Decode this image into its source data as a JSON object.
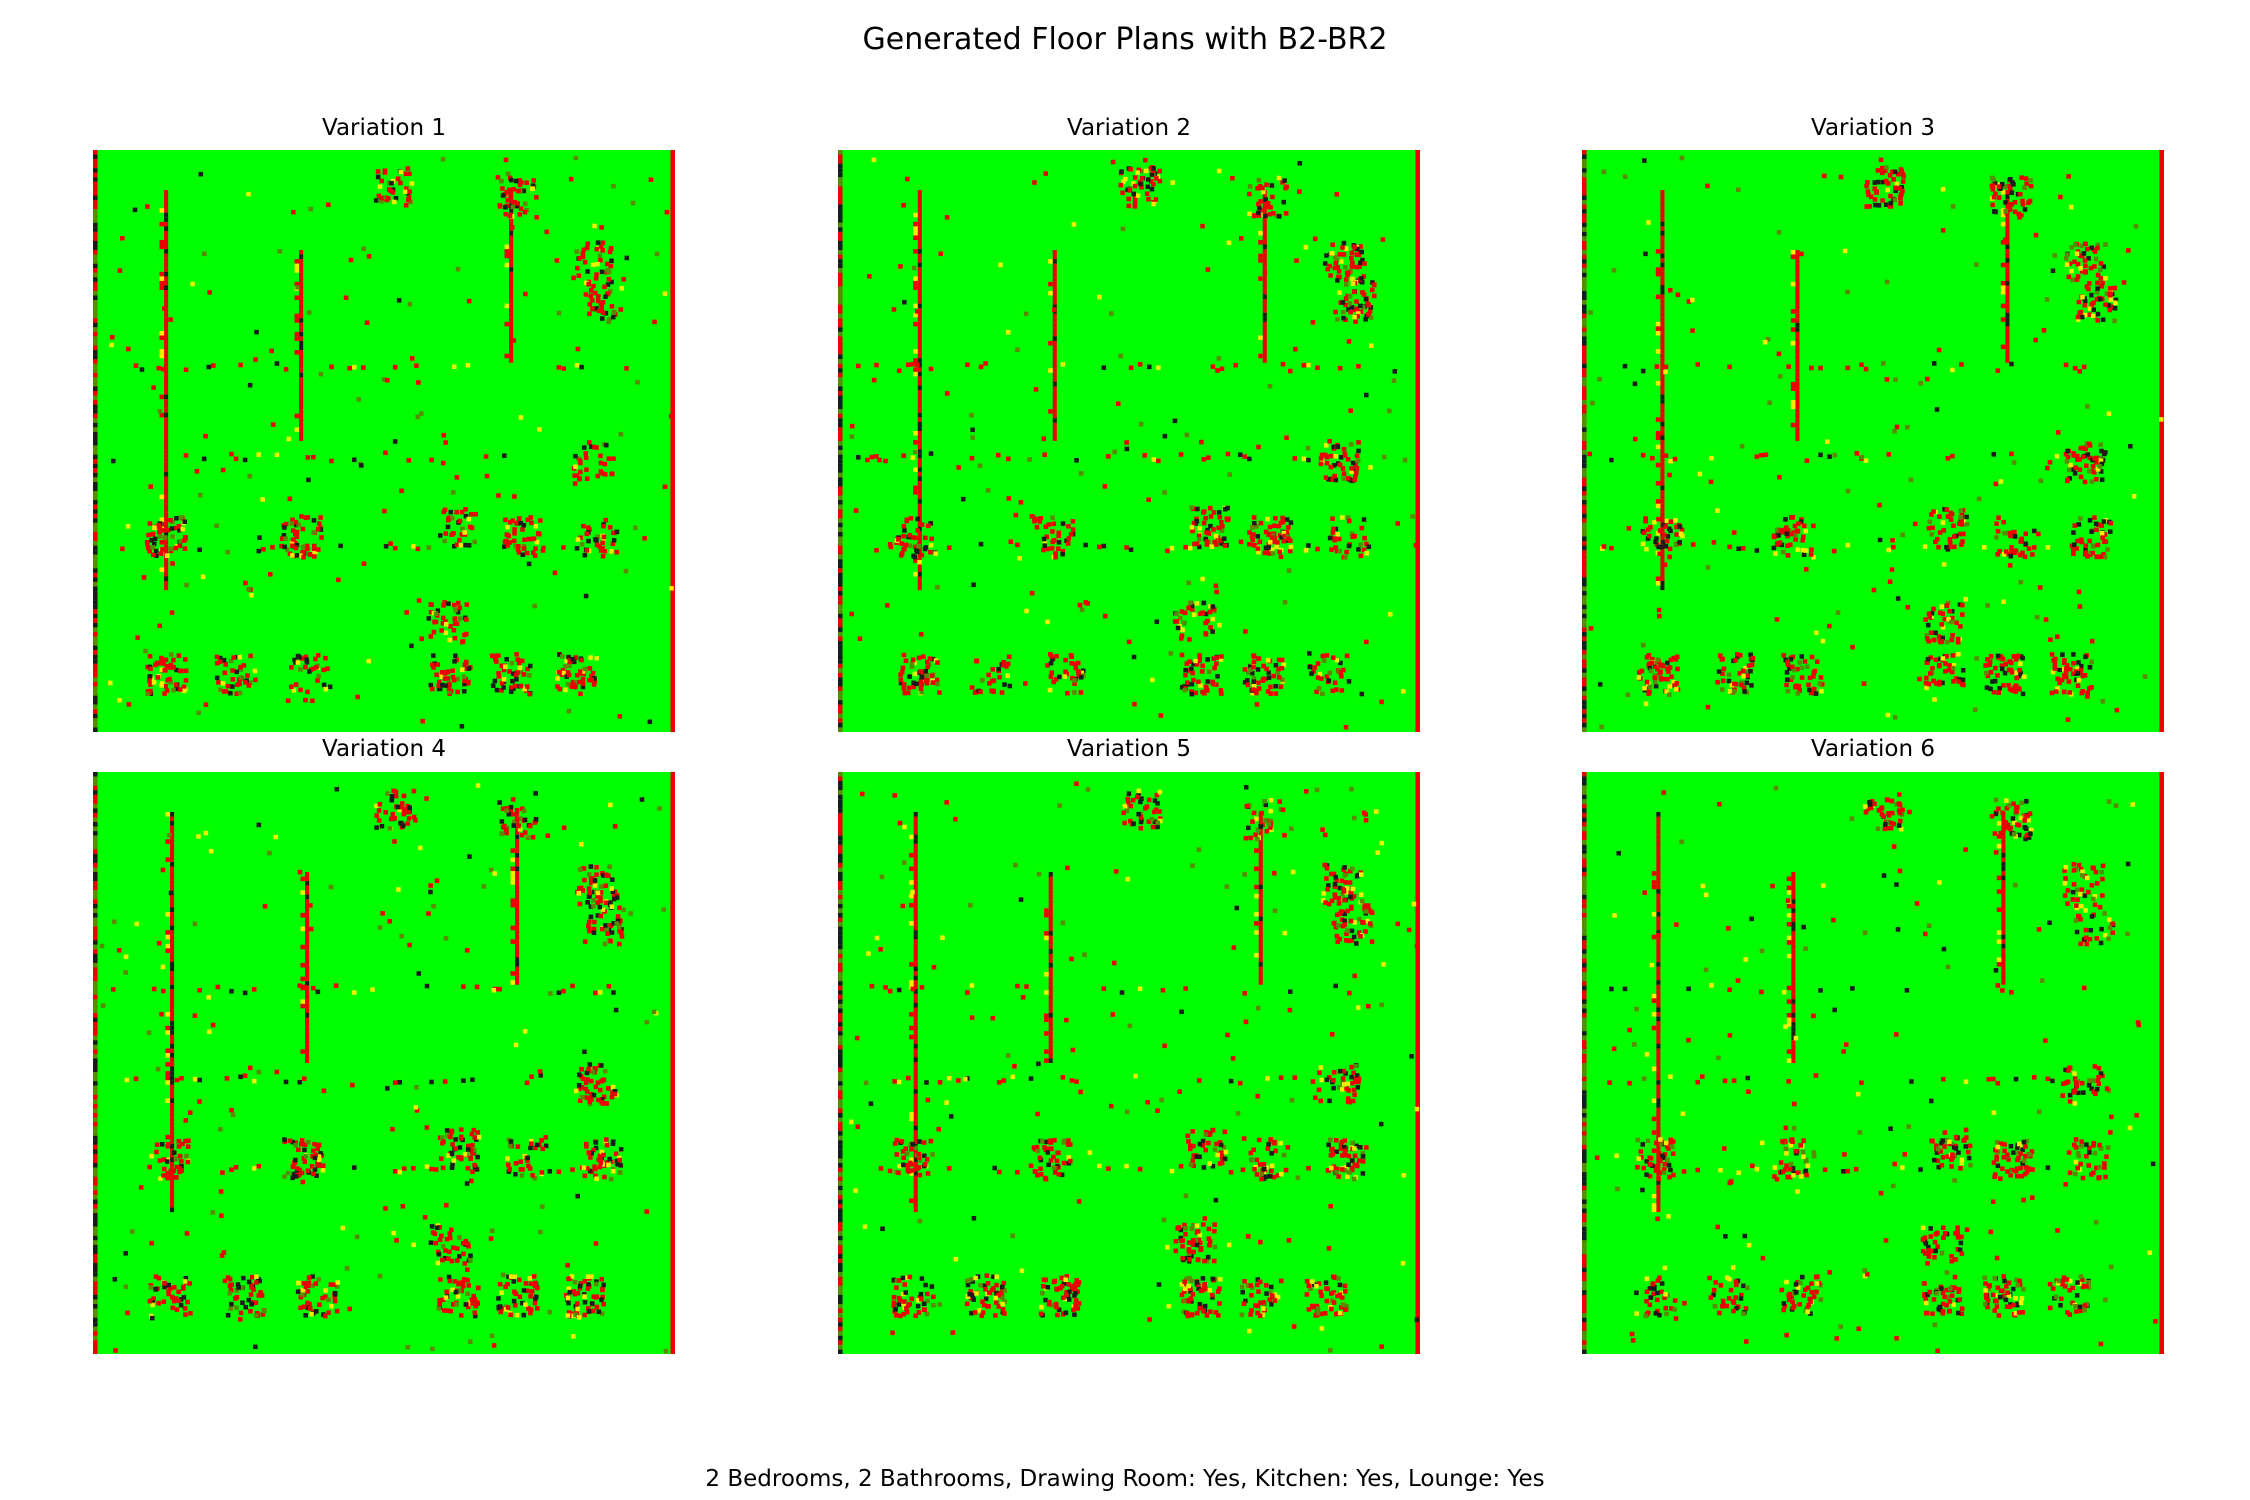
{
  "figure": {
    "title": "Generated Floor Plans with B2-BR2",
    "caption": "2 Bedrooms, 2 Bathrooms, Drawing Room: Yes, Kitchen: Yes, Lounge: Yes"
  },
  "colors": {
    "background_room": "#00ff00",
    "wall": "#ee0000",
    "dark": "#1a1a1a",
    "yellow": "#f0f000",
    "muted_green": "#5a8a00"
  },
  "panels": [
    {
      "label": "Variation 1"
    },
    {
      "label": "Variation 2"
    },
    {
      "label": "Variation 3"
    },
    {
      "label": "Variation 4"
    },
    {
      "label": "Variation 5"
    },
    {
      "label": "Variation 6"
    }
  ]
}
